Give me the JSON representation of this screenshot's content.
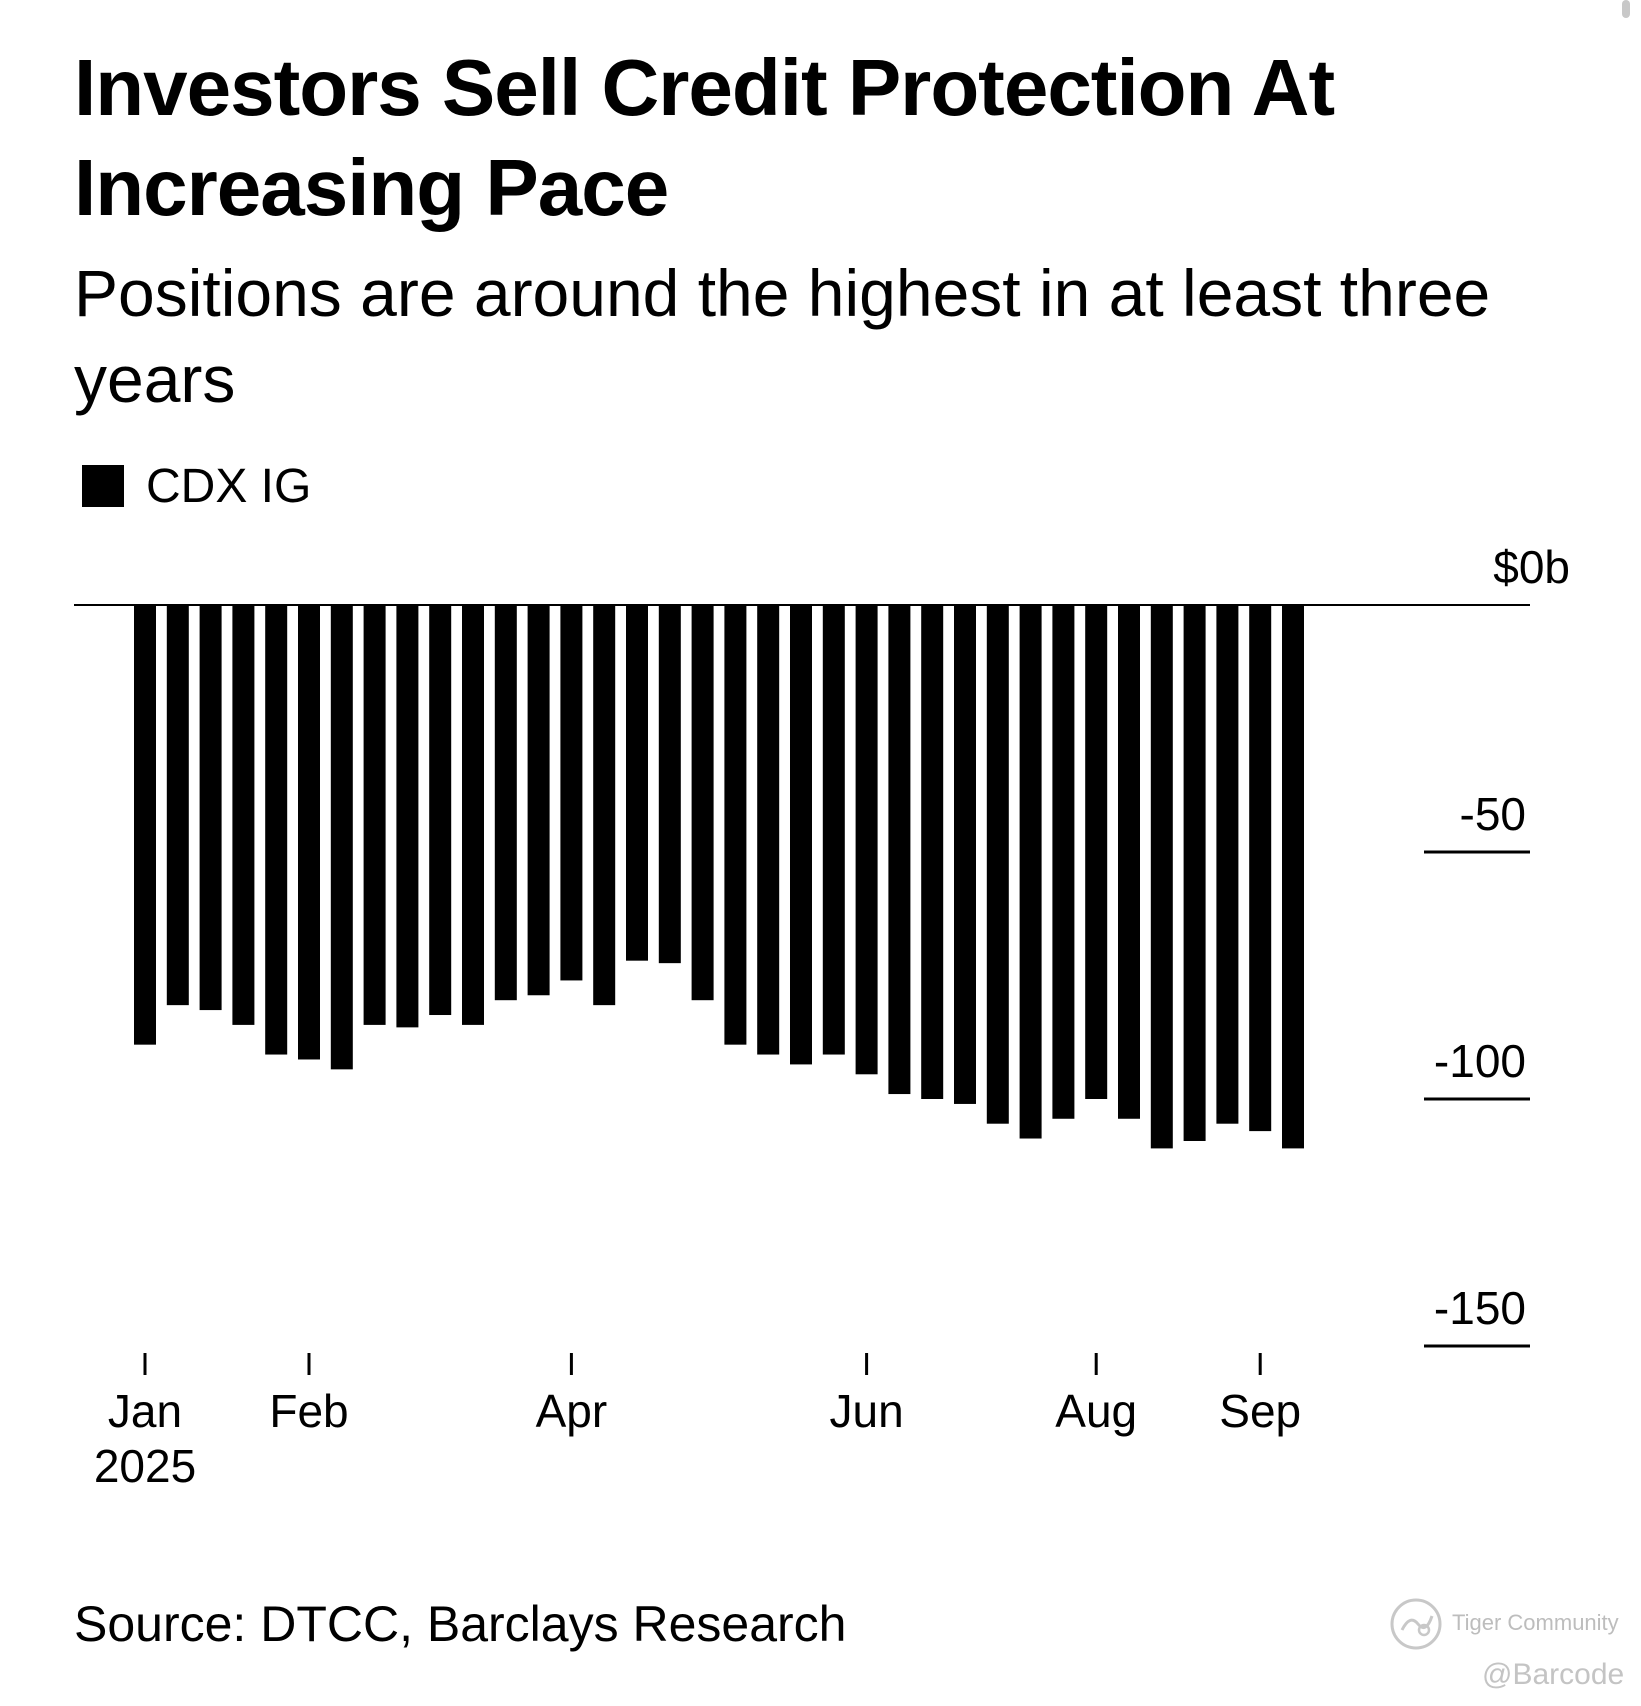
{
  "chart_data": {
    "type": "bar",
    "title": "Investors Sell Credit Protection At Increasing Pace",
    "subtitle": "Positions are around the highest in at least three years",
    "legend": [
      {
        "label": "CDX IG",
        "color": "#000000"
      }
    ],
    "series": [
      {
        "name": "CDX IG",
        "values": [
          -89,
          -81,
          -82,
          -85,
          -91,
          -92,
          -94,
          -85,
          -85.5,
          -83,
          -85,
          -80,
          -79,
          -76,
          -81,
          -72,
          -72.5,
          -80,
          -89,
          -91,
          -93,
          -91,
          -95,
          -99,
          -100,
          -101,
          -105,
          -108,
          -104,
          -100,
          -104,
          -110,
          -108.5,
          -105,
          -106.5,
          -110
        ]
      }
    ],
    "x_ticks": [
      {
        "label": "Jan",
        "sublabel": "2025",
        "bar_index": 0
      },
      {
        "label": "Feb",
        "sublabel": "",
        "bar_index": 5
      },
      {
        "label": "Apr",
        "sublabel": "",
        "bar_index": 13
      },
      {
        "label": "Jun",
        "sublabel": "",
        "bar_index": 22
      },
      {
        "label": "Aug",
        "sublabel": "",
        "bar_index": 29
      },
      {
        "label": "Sep",
        "sublabel": "",
        "bar_index": 34
      }
    ],
    "y_ticks": [
      {
        "value": 0,
        "label": "$0b"
      },
      {
        "value": -50,
        "label": "-50"
      },
      {
        "value": -100,
        "label": "-100"
      },
      {
        "value": -150,
        "label": "-150"
      }
    ],
    "ylim": [
      -150,
      0
    ],
    "xlabel": "",
    "ylabel": "",
    "grid": false,
    "legend_position": "top-left",
    "bar_color": "#000000"
  },
  "footer": {
    "source": "Source: DTCC, Barclays Research",
    "watermark_text": "Tiger Community",
    "handle": "@Barcode"
  }
}
